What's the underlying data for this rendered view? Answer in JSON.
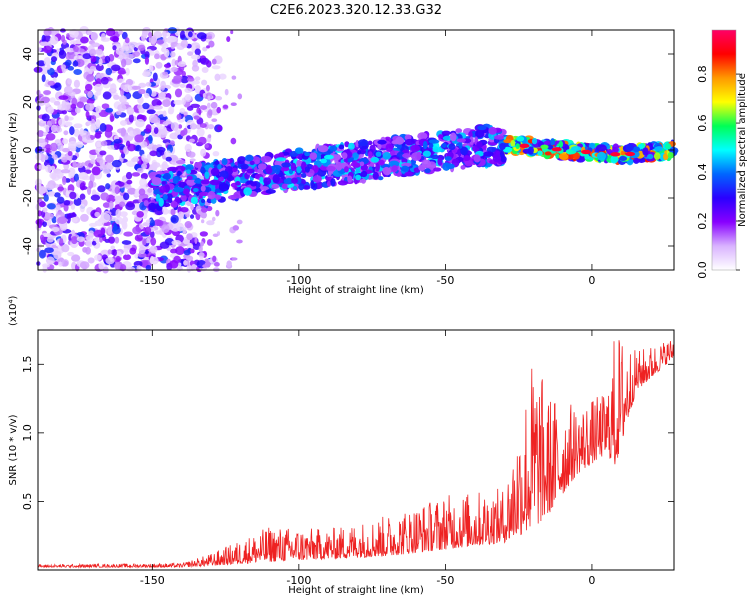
{
  "title": "C2E6.2023.320.12.33.G32",
  "chart_data": [
    {
      "type": "heatmap",
      "xlabel": "Height of straight line (km)",
      "ylabel": "Frequency (Hz)",
      "xlim": [
        -189,
        28
      ],
      "ylim": [
        -50,
        50
      ],
      "xticks": [
        -150,
        -100,
        -50,
        0
      ],
      "yticks": [
        -40,
        -20,
        0,
        20,
        40
      ],
      "colorbar": {
        "label": "Normalized spectral amplitude",
        "range": [
          0.0,
          0.98
        ],
        "ticks": [
          0.0,
          0.2,
          0.4,
          0.6,
          0.8
        ],
        "colormap": [
          "#ffffff",
          "#d9b3ff",
          "#8800ff",
          "#2a00ff",
          "#0066ff",
          "#00ffff",
          "#00ff55",
          "#ffff00",
          "#ff9900",
          "#ff0000",
          "#ff0066"
        ]
      },
      "ridge": {
        "description_points": [
          {
            "x": -145,
            "y": -16
          },
          {
            "x": -100,
            "y": -8
          },
          {
            "x": -60,
            "y": -2
          },
          {
            "x": -35,
            "y": 2
          },
          {
            "x": -25,
            "y": 2
          },
          {
            "x": -10,
            "y": 0
          },
          {
            "x": 10,
            "y": -2
          },
          {
            "x": 28,
            "y": 0
          }
        ]
      }
    },
    {
      "type": "line",
      "xlabel": "Height of straight line (km)",
      "ylabel": "SNR (10 * v/v)",
      "yscale_note": "(x10⁴)",
      "xlim": [
        -189,
        28
      ],
      "ylim": [
        0,
        1.75
      ],
      "xticks": [
        -150,
        -100,
        -50,
        0
      ],
      "yticks": [
        0.5,
        1.0,
        1.5
      ],
      "series": [
        {
          "color": "#ee2222",
          "envelope": [
            {
              "x": -189,
              "base": 0.02,
              "peak": 0.04
            },
            {
              "x": -140,
              "base": 0.02,
              "peak": 0.05
            },
            {
              "x": -130,
              "base": 0.03,
              "peak": 0.12
            },
            {
              "x": -110,
              "base": 0.06,
              "peak": 0.32
            },
            {
              "x": -90,
              "base": 0.08,
              "peak": 0.3
            },
            {
              "x": -70,
              "base": 0.1,
              "peak": 0.4
            },
            {
              "x": -50,
              "base": 0.15,
              "peak": 0.55
            },
            {
              "x": -30,
              "base": 0.2,
              "peak": 0.6
            },
            {
              "x": -20,
              "base": 0.3,
              "peak": 1.6
            },
            {
              "x": -15,
              "base": 0.4,
              "peak": 1.3
            },
            {
              "x": -5,
              "base": 0.7,
              "peak": 1.2
            },
            {
              "x": 5,
              "base": 0.85,
              "peak": 1.3
            },
            {
              "x": 8,
              "base": 0.75,
              "peak": 1.78
            },
            {
              "x": 15,
              "base": 1.3,
              "peak": 1.6
            },
            {
              "x": 28,
              "base": 1.55,
              "peak": 1.7
            }
          ]
        }
      ]
    }
  ]
}
